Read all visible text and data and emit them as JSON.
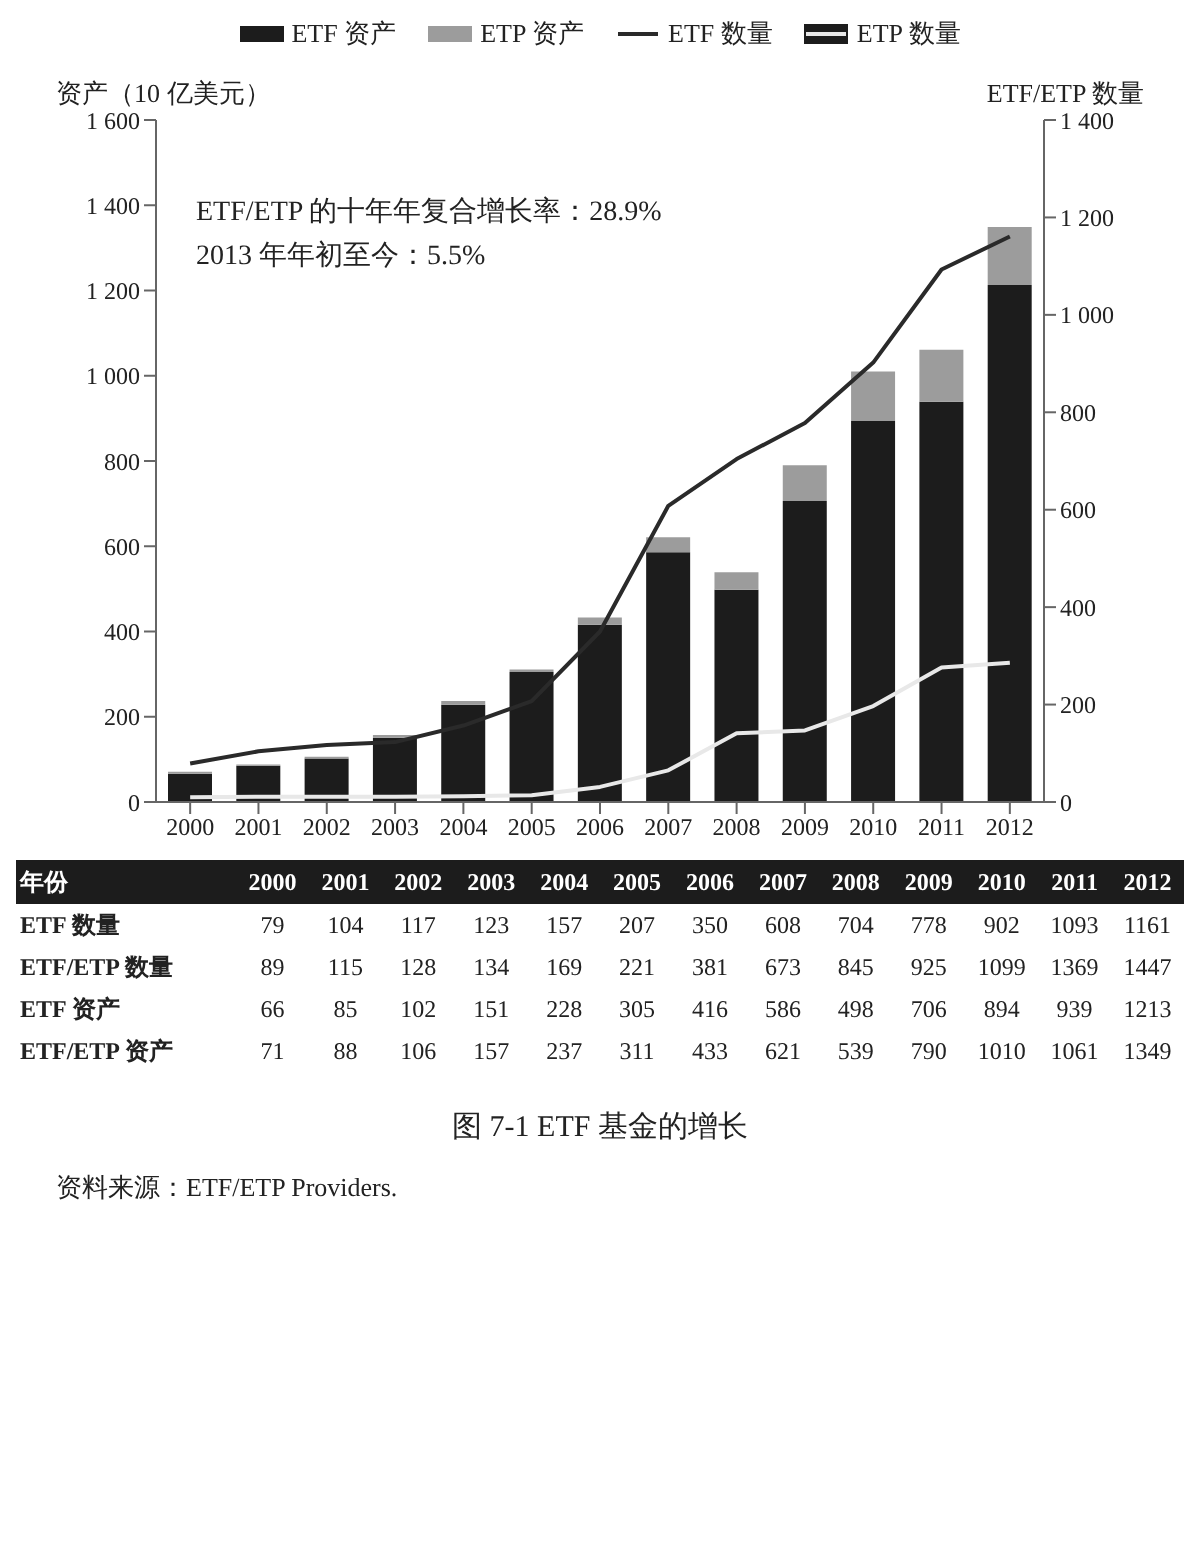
{
  "chart_data": [
    {
      "type": "bar",
      "title": "图 7-1 ETF 基金的增长",
      "ylabel": "资产（10 亿美元）",
      "y2label": "ETF/ETP 数量",
      "categories": [
        "2000",
        "2001",
        "2002",
        "2003",
        "2004",
        "2005",
        "2006",
        "2007",
        "2008",
        "2009",
        "2010",
        "2011",
        "2012"
      ],
      "stacked": true,
      "legend": "top",
      "series": [
        {
          "name": "ETF 资产",
          "type": "bar",
          "color": "#1c1c1c",
          "values": [
            66,
            85,
            102,
            151,
            228,
            305,
            416,
            586,
            498,
            706,
            894,
            939,
            1213
          ]
        },
        {
          "name": "ETP 资产",
          "type": "bar",
          "color": "#9c9c9c",
          "values": [
            5,
            3,
            4,
            6,
            9,
            6,
            17,
            35,
            41,
            84,
            116,
            122,
            136
          ]
        },
        {
          "name": "ETF 数量",
          "type": "line",
          "axis": "y2",
          "color": "#2a2a2a",
          "values": [
            79,
            104,
            117,
            123,
            157,
            207,
            350,
            608,
            704,
            778,
            902,
            1093,
            1161
          ]
        },
        {
          "name": "ETP 数量",
          "type": "line",
          "axis": "y2",
          "color": "#e8e8e8",
          "values": [
            10,
            11,
            11,
            11,
            12,
            14,
            31,
            65,
            141,
            147,
            197,
            276,
            286
          ]
        }
      ],
      "ylim": [
        0,
        1600
      ],
      "yticks": [
        0,
        200,
        400,
        600,
        800,
        {
          "value": 1000,
          "label": "1 000"
        },
        {
          "value": 1200,
          "label": "1 200"
        },
        {
          "value": 1400,
          "label": "1 400"
        },
        {
          "value": 1600,
          "label": "1 600"
        }
      ],
      "y2lim": [
        0,
        1400
      ],
      "y2ticks": [
        0,
        200,
        400,
        600,
        800,
        {
          "value": 1000,
          "label": "1 000"
        },
        {
          "value": 1200,
          "label": "1 200"
        },
        {
          "value": 1400,
          "label": "1 400"
        }
      ],
      "annotations": [
        "ETF/ETP 的十年年复合增长率：28.9%",
        "2013 年年初至今：5.5%",
        "资料来源：ETF/ETP Providers."
      ]
    },
    {
      "type": "heatmap",
      "xlabel": "年份",
      "data_labels": true,
      "categories": [
        "2000",
        "2001",
        "2002",
        "2003",
        "2004",
        "2005",
        "2006",
        "2007",
        "2008",
        "2009",
        "2010",
        "2011",
        "2012"
      ],
      "y_categories": [
        "ETF 数量",
        "ETF/ETP 数量",
        "ETF 资产",
        "ETF/ETP 资产"
      ],
      "cells": [
        [
          79,
          104,
          117,
          123,
          157,
          207,
          350,
          608,
          704,
          778,
          902,
          1093,
          1161
        ],
        [
          89,
          115,
          128,
          134,
          169,
          221,
          381,
          673,
          845,
          925,
          1099,
          1369,
          1447
        ],
        [
          66,
          85,
          102,
          151,
          228,
          305,
          416,
          586,
          498,
          706,
          894,
          939,
          1213
        ],
        [
          71,
          88,
          106,
          157,
          237,
          311,
          433,
          621,
          539,
          790,
          1010,
          1061,
          1349
        ]
      ]
    }
  ]
}
